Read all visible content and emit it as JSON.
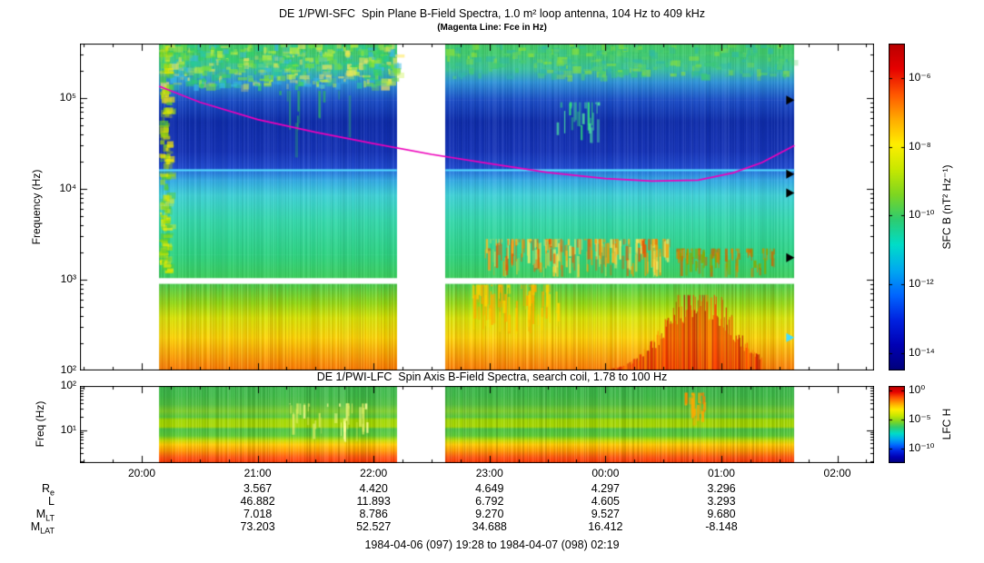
{
  "header": {
    "title": "DE 1/PWI-SFC  Spin Plane B-Field Spectra, 1.0 m² loop antenna, 104 Hz to 409 kHz",
    "subtitle": "(Magenta Line: Fce in Hz)"
  },
  "caption": "1984-04-06 (097) 19:28 to 1984-04-07 (098) 02:19",
  "time_axis": {
    "labels": [
      "20:00",
      "21:00",
      "22:00",
      "23:00",
      "00:00",
      "01:00",
      "02:00"
    ],
    "hours": [
      20,
      21,
      22,
      23,
      24,
      25,
      26
    ]
  },
  "ephemeris": {
    "rows": [
      {
        "label": "R",
        "sub": "e",
        "values": [
          "3.567",
          "4.420",
          "4.649",
          "4.297",
          "3.296"
        ]
      },
      {
        "label": "L",
        "sub": "",
        "values": [
          "46.882",
          "11.893",
          "6.792",
          "4.605",
          "3.293"
        ]
      },
      {
        "label": "M",
        "sub": "LT",
        "values": [
          "7.018",
          "8.786",
          "9.270",
          "9.527",
          "9.680"
        ]
      },
      {
        "label": "M",
        "sub": "LAT",
        "values": [
          "73.203",
          "52.527",
          "34.688",
          "16.412",
          "-8.148"
        ]
      }
    ],
    "value_hours": [
      21,
      22,
      23,
      24,
      25
    ]
  },
  "chart_data": [
    {
      "type": "heatmap",
      "title": "DE 1/PWI-SFC  Spin Plane B-Field Spectra, 1.0 m² loop antenna, 104 Hz to 409 kHz",
      "subtitle": "(Magenta Line: Fce in Hz)",
      "ylabel": "Frequency (Hz)",
      "ylim": [
        100,
        398000
      ],
      "yticks": [
        {
          "v": 100,
          "label": "10²"
        },
        {
          "v": 1000,
          "label": "10³"
        },
        {
          "v": 10000,
          "label": "10⁴"
        },
        {
          "v": 100000,
          "label": "10⁵"
        }
      ],
      "xlim_hours": [
        19.467,
        26.317
      ],
      "xticks": {
        "labels": [
          "20:00",
          "21:00",
          "22:00",
          "23:00",
          "00:00",
          "01:00",
          "02:00"
        ],
        "hours": [
          20,
          21,
          22,
          23,
          24,
          25,
          26
        ]
      },
      "segments": [
        {
          "t0": 20.15,
          "t1": 22.2
        },
        {
          "t0": 22.62,
          "t1": 25.63
        }
      ],
      "gap_band_hz": [
        900,
        1040
      ],
      "striation_alpha": 0.07,
      "color_stops": [
        [
          100,
          "#ff7700"
        ],
        [
          150,
          "#ffa500"
        ],
        [
          230,
          "#ffd700"
        ],
        [
          380,
          "#d9e800"
        ],
        [
          550,
          "#8fdd11"
        ],
        [
          900,
          "#3ecf4e"
        ],
        [
          1040,
          "#3ecf5e"
        ],
        [
          1900,
          "#2fd483"
        ],
        [
          4500,
          "#36d9ad"
        ],
        [
          8500,
          "#3fd2d8"
        ],
        [
          12500,
          "#33a9e6"
        ],
        [
          15500,
          "#2a7ce0"
        ],
        [
          17000,
          "#1f49cf"
        ],
        [
          26000,
          "#1533b8"
        ],
        [
          55000,
          "#0f2dac"
        ],
        [
          95000,
          "#1b4ec8"
        ],
        [
          150000,
          "#2e93d8"
        ],
        [
          210000,
          "#3bc49d"
        ],
        [
          300000,
          "#40cc70"
        ],
        [
          398000,
          "#44cc66"
        ]
      ],
      "features": [
        {
          "type": "mottle",
          "t": [
            20.15,
            22.2
          ],
          "f": [
            140000,
            398000
          ],
          "count": 520,
          "colors": [
            "#7be03a",
            "#2fd06a",
            "#c8f03c",
            "#29c9a0",
            "#ffe95e",
            "#37b9e8"
          ]
        },
        {
          "type": "mottle",
          "t": [
            22.62,
            25.63
          ],
          "f": [
            175000,
            398000
          ],
          "count": 300,
          "colors": [
            "#3cc878",
            "#2fb9a8",
            "#55d06a",
            "#8ce03a"
          ]
        },
        {
          "type": "mottle",
          "t": [
            20.15,
            20.22
          ],
          "f": [
            1100,
            398000
          ],
          "count": 170,
          "colors": [
            "#ffee00",
            "#aadd00",
            "#55cc33"
          ]
        },
        {
          "type": "vstrokes",
          "t": [
            21.0,
            21.9
          ],
          "f": [
            20000,
            120000
          ],
          "count": 12,
          "colors": [
            "#2fae6a"
          ]
        },
        {
          "type": "vstrokes",
          "t": [
            23.55,
            23.95
          ],
          "f": [
            30000,
            90000
          ],
          "count": 26,
          "colors": [
            "#2fe07a",
            "#50e8a0"
          ]
        },
        {
          "type": "vstrokes",
          "t": [
            22.95,
            24.55
          ],
          "f": [
            1050,
            2800
          ],
          "count": 220,
          "colors": [
            "#ff9900",
            "#ffcc33",
            "#ee5500",
            "#ffee66"
          ]
        },
        {
          "type": "vstrokes",
          "t": [
            24.6,
            25.45
          ],
          "f": [
            1050,
            2200
          ],
          "count": 90,
          "colors": [
            "#cc6600",
            "#88aa00",
            "#dd8800"
          ]
        },
        {
          "type": "vstrokes",
          "t": [
            22.85,
            23.6
          ],
          "f": [
            250,
            880
          ],
          "count": 80,
          "colors": [
            "#ffd700",
            "#ffaa00"
          ]
        },
        {
          "type": "blob",
          "t": [
            24.05,
            25.35
          ],
          "f": [
            100,
            680
          ],
          "colors": [
            "#ff3300",
            "#dd1100",
            "#ff7700",
            "#aa0000"
          ]
        }
      ],
      "hline": {
        "f": 16000,
        "color": "#55ddff"
      },
      "fce_line": {
        "color": "#ee00bb",
        "points": [
          [
            20.15,
            135000
          ],
          [
            20.5,
            90000
          ],
          [
            21.0,
            58000
          ],
          [
            21.5,
            42000
          ],
          [
            22.0,
            31500
          ],
          [
            22.5,
            24000
          ],
          [
            23.0,
            19000
          ],
          [
            23.5,
            15200
          ],
          [
            24.0,
            13000
          ],
          [
            24.4,
            12200
          ],
          [
            24.8,
            12500
          ],
          [
            25.1,
            15000
          ],
          [
            25.35,
            19500
          ],
          [
            25.63,
            30000
          ]
        ]
      },
      "markers": [
        {
          "f": 95000,
          "color": "#000000"
        },
        {
          "f": 14500,
          "color": "#000000"
        },
        {
          "f": 9000,
          "color": "#000000"
        },
        {
          "f": 1750,
          "color": "#000000"
        },
        {
          "f": 230,
          "color": "#44ddff"
        }
      ],
      "colorbar": {
        "label": "SFC B (nT² Hz⁻¹)",
        "range": [
          3.16e-15,
          1e-05
        ],
        "tick_values": [
          1e-06,
          1e-08,
          1e-10,
          1e-12,
          1e-14
        ],
        "ticks": [
          "10⁻⁶",
          "10⁻⁸",
          "10⁻¹⁰",
          "10⁻¹²",
          "10⁻¹⁴"
        ],
        "stops": [
          "#00007a",
          "#0000b4",
          "#0022e0",
          "#0066ff",
          "#00aaf0",
          "#00ddc8",
          "#2ecc70",
          "#7ed621",
          "#c8e800",
          "#ffee00",
          "#ffaa00",
          "#ff5500",
          "#e60000",
          "#b80000"
        ]
      }
    },
    {
      "type": "heatmap",
      "title": "DE 1/PWI-LFC  Spin Axis B-Field Spectra, search coil, 1.78 to 100 Hz",
      "ylabel": "Freq (Hz)",
      "ylim": [
        1.78,
        100
      ],
      "yticks": [
        {
          "v": 10,
          "label": "10¹"
        },
        {
          "v": 100,
          "label": "10²"
        }
      ],
      "xlim_hours": [
        19.467,
        26.317
      ],
      "segments": [
        {
          "t0": 20.15,
          "t1": 22.2
        },
        {
          "t0": 22.62,
          "t1": 25.63
        }
      ],
      "striation_alpha": 0.13,
      "color_stops": [
        [
          1.78,
          "#ff3300"
        ],
        [
          2.4,
          "#ff5511"
        ],
        [
          3.4,
          "#ff9900"
        ],
        [
          4.7,
          "#ffcc00"
        ],
        [
          5.8,
          "#c8dd00"
        ],
        [
          7.5,
          "#5ecc33"
        ],
        [
          10.5,
          "#4cc444"
        ],
        [
          12,
          "#a8d800"
        ],
        [
          17,
          "#a0d800"
        ],
        [
          20,
          "#58c83a"
        ],
        [
          27,
          "#7ccc29"
        ],
        [
          38,
          "#4fbf3e"
        ],
        [
          60,
          "#3fbb47"
        ],
        [
          100,
          "#3cb84d"
        ]
      ],
      "features": [
        {
          "type": "vstrokes",
          "t": [
            24.68,
            24.85
          ],
          "f": [
            12,
            70
          ],
          "count": 22,
          "colors": [
            "#ff7700",
            "#ffaa00"
          ]
        },
        {
          "type": "vstrokes",
          "t": [
            21.25,
            21.95
          ],
          "f": [
            5,
            40
          ],
          "count": 40,
          "colors": [
            "#ffff99",
            "#ddee66"
          ]
        }
      ],
      "colorbar": {
        "label": "LFC H",
        "range": [
          3.16e-13,
          6.3
        ],
        "tick_values": [
          1,
          1e-05,
          1e-10
        ],
        "ticks": [
          "10⁰",
          "10⁻⁵",
          "10⁻¹⁰"
        ],
        "stops": [
          "#00007a",
          "#0000b4",
          "#0022e0",
          "#0066ff",
          "#00aaf0",
          "#00ddc8",
          "#2ecc70",
          "#7ed621",
          "#c8e800",
          "#ffee00",
          "#ffaa00",
          "#ff5500",
          "#e60000",
          "#b80000"
        ]
      }
    }
  ]
}
